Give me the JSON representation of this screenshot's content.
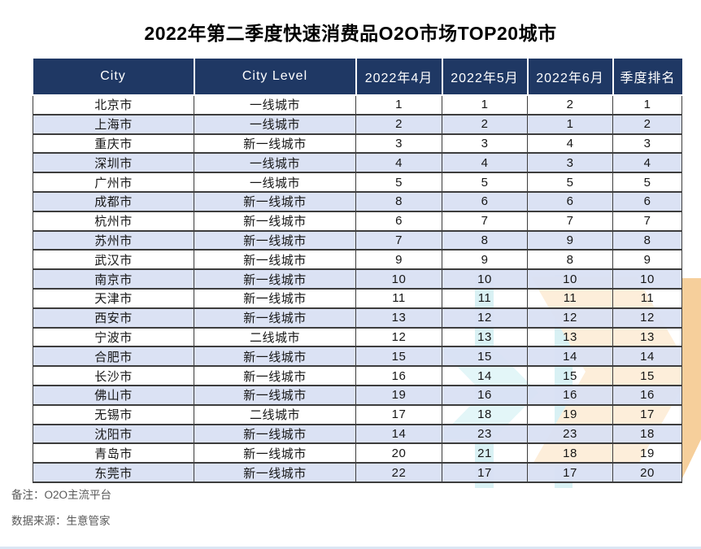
{
  "chart_data": {
    "type": "table",
    "title": "2022年第二季度快速消费品O2O市场TOP20城市",
    "columns": [
      "City",
      "City Level",
      "2022年4月",
      "2022年5月",
      "2022年6月",
      "季度排名"
    ],
    "rows": [
      [
        "北京市",
        "一线城市",
        1,
        1,
        2,
        1
      ],
      [
        "上海市",
        "一线城市",
        2,
        2,
        1,
        2
      ],
      [
        "重庆市",
        "新一线城市",
        3,
        3,
        4,
        3
      ],
      [
        "深圳市",
        "一线城市",
        4,
        4,
        3,
        4
      ],
      [
        "广州市",
        "一线城市",
        5,
        5,
        5,
        5
      ],
      [
        "成都市",
        "新一线城市",
        8,
        6,
        6,
        6
      ],
      [
        "杭州市",
        "新一线城市",
        6,
        7,
        7,
        7
      ],
      [
        "苏州市",
        "新一线城市",
        7,
        8,
        9,
        8
      ],
      [
        "武汉市",
        "新一线城市",
        9,
        9,
        8,
        9
      ],
      [
        "南京市",
        "新一线城市",
        10,
        10,
        10,
        10
      ],
      [
        "天津市",
        "新一线城市",
        11,
        11,
        11,
        11
      ],
      [
        "西安市",
        "新一线城市",
        13,
        12,
        12,
        12
      ],
      [
        "宁波市",
        "二线城市",
        12,
        13,
        13,
        13
      ],
      [
        "合肥市",
        "新一线城市",
        15,
        15,
        14,
        14
      ],
      [
        "长沙市",
        "新一线城市",
        16,
        14,
        15,
        15
      ],
      [
        "佛山市",
        "新一线城市",
        19,
        16,
        16,
        16
      ],
      [
        "无锡市",
        "二线城市",
        17,
        18,
        19,
        17
      ],
      [
        "沈阳市",
        "新一线城市",
        14,
        23,
        23,
        18
      ],
      [
        "青岛市",
        "新一线城市",
        20,
        21,
        18,
        19
      ],
      [
        "东莞市",
        "新一线城市",
        22,
        17,
        17,
        20
      ]
    ],
    "notes": [
      "备注：O2O主流平台",
      "数据来源：生意管家"
    ],
    "layout": {
      "banded_rows": true,
      "band_pattern": "even-rows-blue",
      "header_style": "dark-navy-white-text"
    }
  },
  "column_keys": [
    "city",
    "city-level",
    "2022-04-rank",
    "2022-05-rank",
    "2022-06-rank",
    "quarter-rank"
  ],
  "colors": {
    "header_bg": "#1F3864",
    "row_alt": "#D8E0F3",
    "grid_line": "#3D3D3D",
    "note_text": "#595959",
    "decor_cyan": "#D9F1F4",
    "decor_peach": "#FDEEDA",
    "decor_orange": "#F6CF9B",
    "bottom_edge": "#DBE6F4"
  }
}
